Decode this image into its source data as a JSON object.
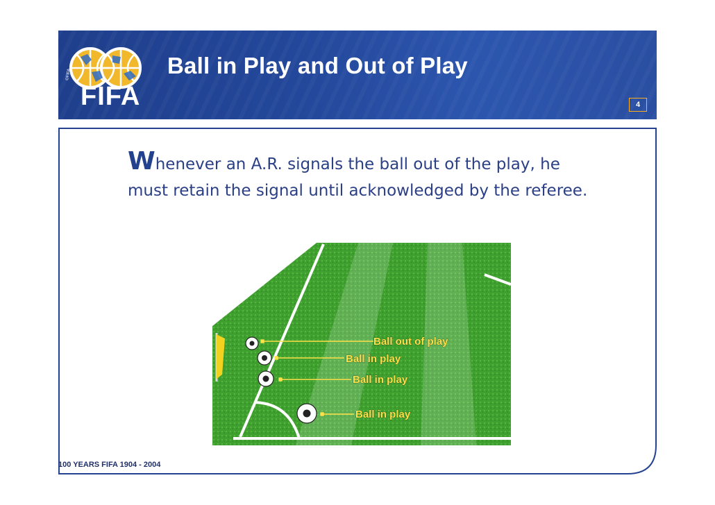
{
  "header": {
    "logo_text": "FIFA",
    "title": "Ball in Play and Out of Play",
    "page_number": "4"
  },
  "body": {
    "dropcap": "W",
    "text_line1": "henever an A.R. signals the ball out of the play, he",
    "text_line2": "must retain the signal until acknowledged by the referee."
  },
  "figure": {
    "labels": [
      "Ball out of play",
      "Ball in play",
      "Ball in play",
      "Ball in play"
    ],
    "colors": {
      "grass": "#3e9e2e",
      "line": "#ffffff",
      "label": "#ffe14a",
      "flag": "#f2d21e"
    }
  },
  "footer": {
    "text": "100 YEARS FIFA  1904 - 2004"
  },
  "colors": {
    "header_blue": "#23479a",
    "text_blue": "#2b3f86",
    "frame": "#1f3f8c"
  }
}
